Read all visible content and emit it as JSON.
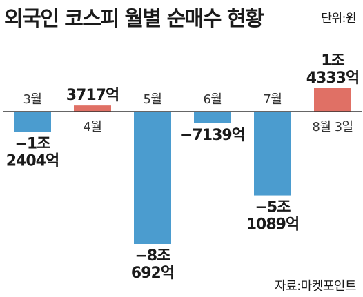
{
  "title": "외국인 코스피 월별 순매수 현황",
  "unit": "단위:원",
  "source": "자료:마켓포인트",
  "colors": {
    "positive": "#e07065",
    "negative": "#4b9ccf",
    "axis": "#333333"
  },
  "chart_data": {
    "type": "bar",
    "title": "외국인 코스피 월별 순매수 현황",
    "unit": "단위:원",
    "categories": [
      "3월",
      "4월",
      "5월",
      "6월",
      "7월",
      "8월 3일"
    ],
    "values": [
      -12404,
      3717,
      -80692,
      -7139,
      -51089,
      14333
    ],
    "value_unit": "억원",
    "data_labels": [
      [
        "−1조",
        "2404억"
      ],
      [
        "3717억"
      ],
      [
        "−8조",
        "692억"
      ],
      [
        "−7139억"
      ],
      [
        "−5조",
        "1089억"
      ],
      [
        "1조",
        "4333억"
      ]
    ],
    "grid": false,
    "legend": "none"
  }
}
